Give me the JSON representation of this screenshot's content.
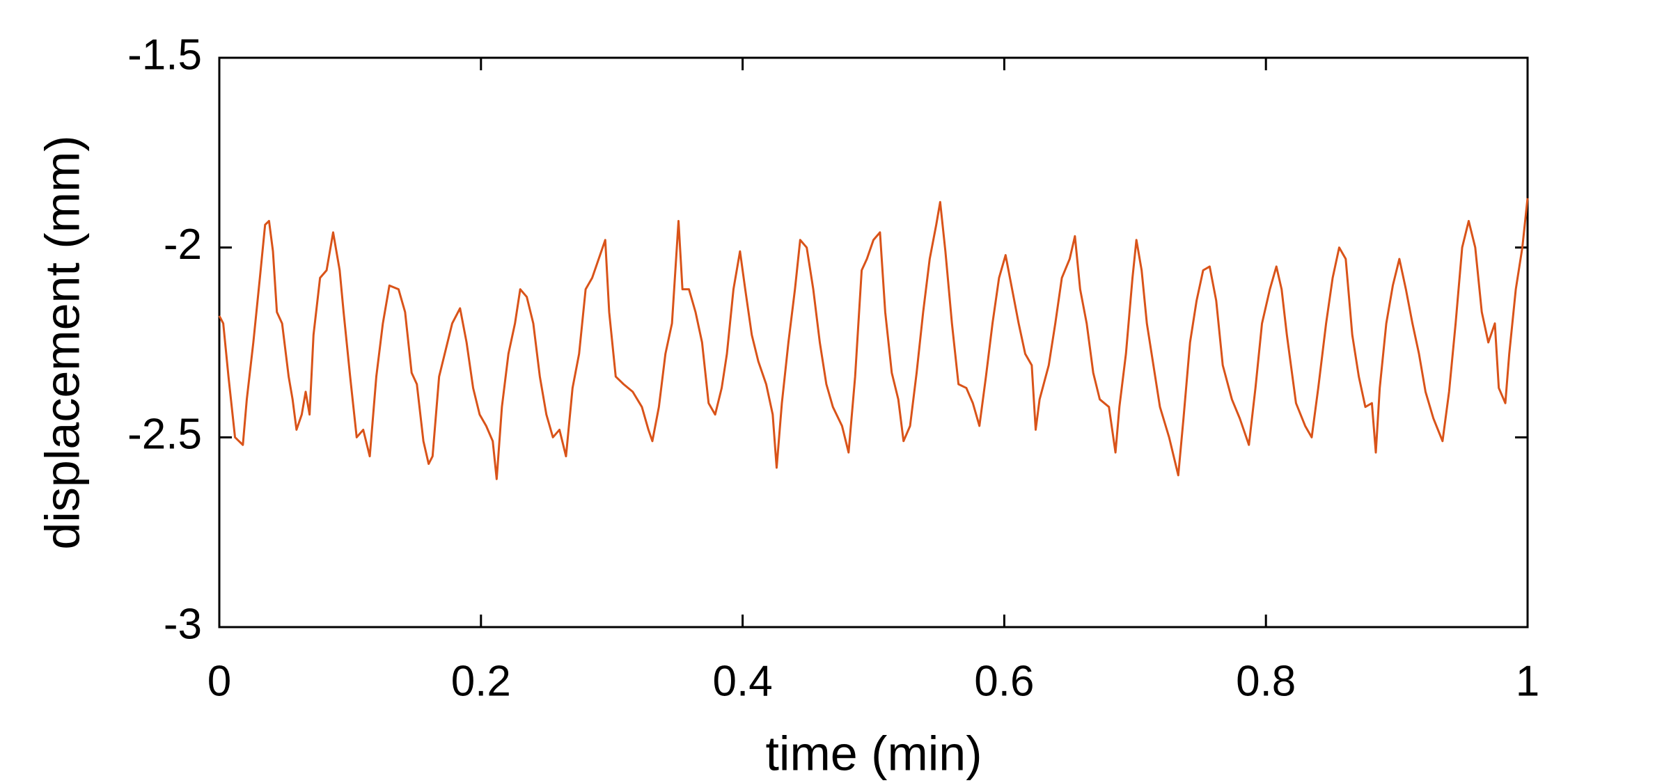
{
  "chart_data": {
    "type": "line",
    "xlabel": "time (min)",
    "ylabel": "displacement (mm)",
    "xlim": [
      0,
      1
    ],
    "ylim": [
      -3,
      -1.5
    ],
    "xticks": [
      0,
      0.2,
      0.4,
      0.6,
      0.8,
      1
    ],
    "yticks": [
      -3,
      -2.5,
      -2,
      -1.5
    ],
    "grid": false,
    "x": [
      0,
      0.003,
      0.007,
      0.012,
      0.015,
      0.018,
      0.021,
      0.026,
      0.031,
      0.035,
      0.038,
      0.041,
      0.044,
      0.048,
      0.053,
      0.056,
      0.059,
      0.063,
      0.066,
      0.069,
      0.072,
      0.077,
      0.082,
      0.087,
      0.092,
      0.095,
      0.1,
      0.105,
      0.11,
      0.115,
      0.12,
      0.125,
      0.13,
      0.137,
      0.142,
      0.147,
      0.151,
      0.156,
      0.16,
      0.163,
      0.168,
      0.173,
      0.178,
      0.184,
      0.189,
      0.194,
      0.199,
      0.204,
      0.209,
      0.212,
      0.216,
      0.221,
      0.226,
      0.23,
      0.235,
      0.24,
      0.245,
      0.25,
      0.255,
      0.26,
      0.265,
      0.27,
      0.275,
      0.28,
      0.285,
      0.29,
      0.295,
      0.298,
      0.303,
      0.309,
      0.316,
      0.323,
      0.328,
      0.331,
      0.336,
      0.341,
      0.346,
      0.351,
      0.354,
      0.359,
      0.364,
      0.369,
      0.374,
      0.379,
      0.384,
      0.388,
      0.393,
      0.398,
      0.402,
      0.407,
      0.412,
      0.418,
      0.423,
      0.426,
      0.43,
      0.435,
      0.44,
      0.444,
      0.449,
      0.454,
      0.459,
      0.464,
      0.469,
      0.476,
      0.481,
      0.486,
      0.491,
      0.495,
      0.5,
      0.505,
      0.509,
      0.514,
      0.519,
      0.523,
      0.528,
      0.533,
      0.538,
      0.543,
      0.548,
      0.551,
      0.555,
      0.56,
      0.565,
      0.571,
      0.576,
      0.581,
      0.586,
      0.591,
      0.596,
      0.601,
      0.606,
      0.611,
      0.616,
      0.621,
      0.624,
      0.627,
      0.634,
      0.639,
      0.644,
      0.65,
      0.654,
      0.658,
      0.663,
      0.668,
      0.673,
      0.68,
      0.685,
      0.688,
      0.693,
      0.698,
      0.701,
      0.705,
      0.709,
      0.714,
      0.719,
      0.726,
      0.733,
      0.737,
      0.742,
      0.747,
      0.752,
      0.757,
      0.762,
      0.767,
      0.774,
      0.78,
      0.787,
      0.792,
      0.797,
      0.803,
      0.808,
      0.812,
      0.816,
      0.823,
      0.83,
      0.835,
      0.84,
      0.846,
      0.851,
      0.856,
      0.861,
      0.866,
      0.871,
      0.876,
      0.881,
      0.884,
      0.887,
      0.892,
      0.897,
      0.902,
      0.907,
      0.912,
      0.917,
      0.922,
      0.928,
      0.935,
      0.94,
      0.945,
      0.95,
      0.955,
      0.96,
      0.965,
      0.97,
      0.975,
      0.978,
      0.983,
      0.986,
      0.991,
      0.996,
      1
    ],
    "series": [
      {
        "color": "#d95319",
        "values": [
          -2.18,
          -2.2,
          -2.34,
          -2.5,
          -2.51,
          -2.52,
          -2.4,
          -2.25,
          -2.08,
          -1.94,
          -1.93,
          -2.01,
          -2.17,
          -2.2,
          -2.34,
          -2.4,
          -2.48,
          -2.44,
          -2.38,
          -2.44,
          -2.23,
          -2.08,
          -2.06,
          -1.96,
          -2.06,
          -2.17,
          -2.34,
          -2.5,
          -2.48,
          -2.55,
          -2.34,
          -2.2,
          -2.1,
          -2.11,
          -2.17,
          -2.33,
          -2.36,
          -2.51,
          -2.57,
          -2.55,
          -2.34,
          -2.27,
          -2.2,
          -2.16,
          -2.25,
          -2.37,
          -2.44,
          -2.47,
          -2.51,
          -2.61,
          -2.42,
          -2.28,
          -2.2,
          -2.11,
          -2.13,
          -2.2,
          -2.34,
          -2.44,
          -2.5,
          -2.48,
          -2.55,
          -2.37,
          -2.28,
          -2.11,
          -2.08,
          -2.03,
          -1.98,
          -2.17,
          -2.34,
          -2.36,
          -2.38,
          -2.42,
          -2.48,
          -2.51,
          -2.42,
          -2.28,
          -2.2,
          -1.93,
          -2.11,
          -2.11,
          -2.17,
          -2.25,
          -2.41,
          -2.44,
          -2.37,
          -2.28,
          -2.11,
          -2.01,
          -2.11,
          -2.23,
          -2.3,
          -2.36,
          -2.44,
          -2.58,
          -2.41,
          -2.25,
          -2.11,
          -1.98,
          -2.0,
          -2.11,
          -2.25,
          -2.36,
          -2.42,
          -2.47,
          -2.54,
          -2.34,
          -2.06,
          -2.03,
          -1.98,
          -1.96,
          -2.17,
          -2.33,
          -2.4,
          -2.51,
          -2.47,
          -2.33,
          -2.17,
          -2.03,
          -1.94,
          -1.88,
          -2.01,
          -2.2,
          -2.36,
          -2.37,
          -2.41,
          -2.47,
          -2.34,
          -2.2,
          -2.08,
          -2.02,
          -2.11,
          -2.2,
          -2.28,
          -2.31,
          -2.48,
          -2.4,
          -2.31,
          -2.2,
          -2.08,
          -2.03,
          -1.97,
          -2.11,
          -2.2,
          -2.33,
          -2.4,
          -2.42,
          -2.54,
          -2.42,
          -2.28,
          -2.08,
          -1.98,
          -2.06,
          -2.2,
          -2.31,
          -2.42,
          -2.5,
          -2.6,
          -2.45,
          -2.25,
          -2.14,
          -2.06,
          -2.05,
          -2.14,
          -2.31,
          -2.4,
          -2.45,
          -2.52,
          -2.37,
          -2.2,
          -2.11,
          -2.05,
          -2.11,
          -2.23,
          -2.41,
          -2.47,
          -2.5,
          -2.37,
          -2.2,
          -2.08,
          -2.0,
          -2.03,
          -2.23,
          -2.34,
          -2.42,
          -2.41,
          -2.54,
          -2.37,
          -2.2,
          -2.1,
          -2.03,
          -2.11,
          -2.2,
          -2.28,
          -2.38,
          -2.45,
          -2.51,
          -2.38,
          -2.2,
          -2.0,
          -1.93,
          -2.0,
          -2.17,
          -2.25,
          -2.2,
          -2.37,
          -2.41,
          -2.28,
          -2.11,
          -2.0,
          -1.87
        ]
      }
    ]
  }
}
